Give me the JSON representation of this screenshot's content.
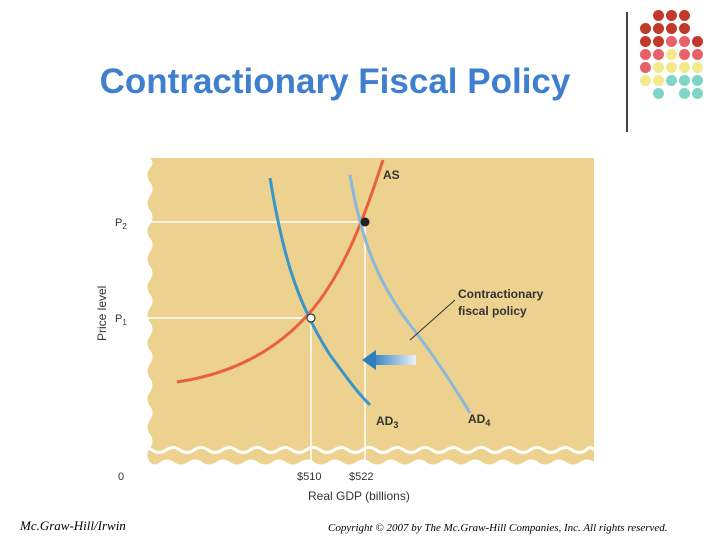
{
  "slide": {
    "title": "Contractionary Fiscal Policy",
    "footer_left": "Mc.Graw-Hill/Irwin",
    "footer_right": "Copyright © 2007 by The Mc.Graw-Hill Companies, Inc. All rights reserved."
  },
  "diagram": {
    "y_label": "Price level",
    "x_label": "Real GDP (billions)",
    "origin_label": "0",
    "p2_label": "P",
    "p2_sub": "2",
    "p1_label": "P",
    "p1_sub": "1",
    "x_tick_1": "$510",
    "x_tick_2": "$522",
    "as_label": "AS",
    "ad3_label": "AD",
    "ad3_sub": "3",
    "ad4_label": "AD",
    "ad4_sub": "4",
    "annotation_line1": "Contractionary",
    "annotation_line2": "fiscal policy",
    "colors": {
      "background": "#ecd18f",
      "as_curve": "#e8613f",
      "ad3_curve": "#3a95c8",
      "ad4_curve": "#8ab8db",
      "guides": "#ffffff"
    }
  },
  "decoration": {
    "dot_colors": [
      "#c0392b",
      "#e8616a",
      "#f2ea8a",
      "#7fd6c6"
    ]
  }
}
